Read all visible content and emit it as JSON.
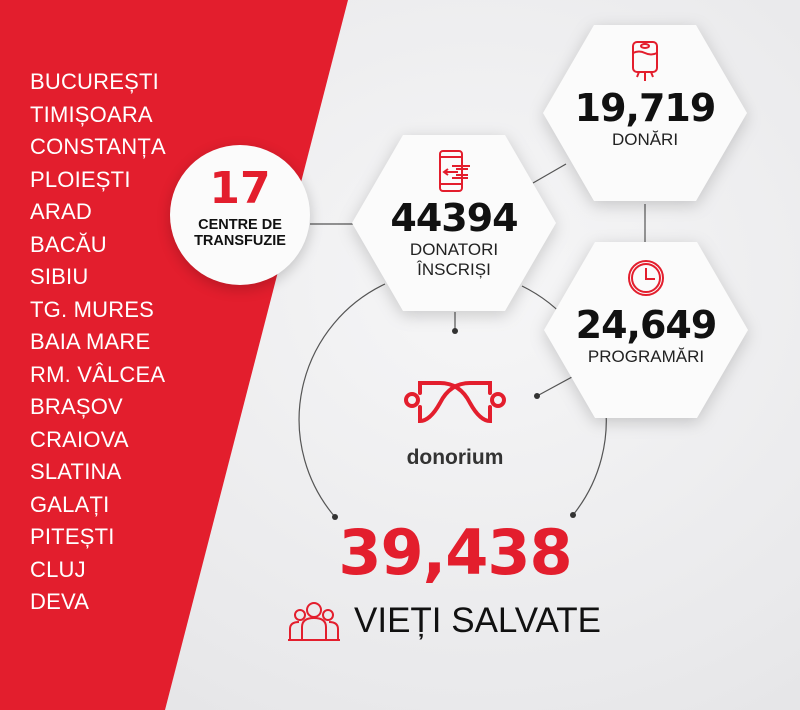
{
  "colors": {
    "accent": "#e31e2d",
    "text": "#111111",
    "background": "#ececee"
  },
  "cities": [
    "BUCUREȘTI",
    "TIMIȘOARA",
    "CONSTANȚA",
    "PLOIEȘTI",
    "ARAD",
    "BACĂU",
    "SIBIU",
    "TG. MURES",
    "BAIA MARE",
    "RM. VÂLCEA",
    "BRAȘOV",
    "CRAIOVA",
    "SLATINA",
    "GALAȚI",
    "PITEȘTI",
    "CLUJ",
    "DEVA"
  ],
  "centers": {
    "value": "17",
    "label_line1": "CENTRE DE",
    "label_line2": "TRANSFUZIE"
  },
  "donations": {
    "value": "19,719",
    "label": "DONĂRI",
    "icon": "blood-bag-icon"
  },
  "donors": {
    "value": "44394",
    "label_line1": "DONATORI",
    "label_line2": "ÎNSCRIȘI",
    "icon": "phone-transfer-icon"
  },
  "appointments": {
    "value": "24,649",
    "label": "PROGRAMĂRI",
    "icon": "clock-icon"
  },
  "brand": {
    "name": "donorium",
    "icon": "donorium-logo"
  },
  "lives": {
    "value": "39,438",
    "label": "VIEȚI SALVATE",
    "icon": "people-icon"
  }
}
